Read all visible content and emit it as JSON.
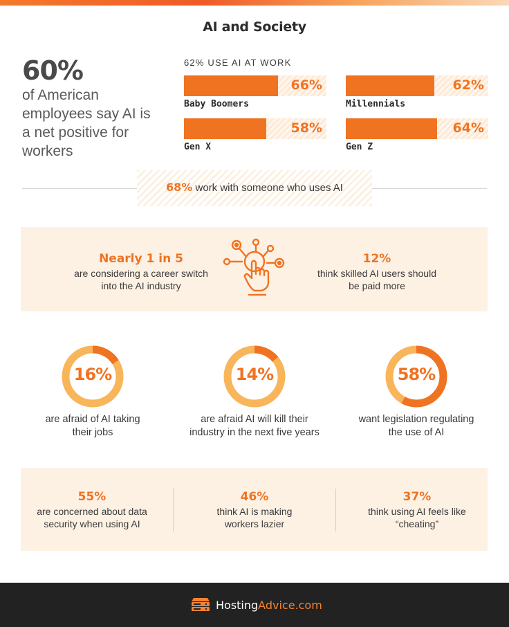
{
  "title": "AI and Society",
  "headline": {
    "value": "60%",
    "description": "of American employees say AI is a net positive for workers"
  },
  "generations": {
    "heading": "62% USE AI AT WORK",
    "items": [
      {
        "label": "Baby Boomers",
        "value": "66%",
        "fraction": 0.66
      },
      {
        "label": "Millennials",
        "value": "62%",
        "fraction": 0.62
      },
      {
        "label": "Gen X",
        "value": "58%",
        "fraction": 0.58
      },
      {
        "label": "Gen Z",
        "value": "64%",
        "fraction": 0.64
      }
    ]
  },
  "coworkers": {
    "value": "68%",
    "text": "work with someone who uses AI"
  },
  "panel1": {
    "left": {
      "highlight": "Nearly 1 in 5",
      "text": "are considering a career switch into the AI industry"
    },
    "icon": "ai-touch-network-icon",
    "right": {
      "highlight": "12%",
      "text": "think skilled AI users should be paid more"
    }
  },
  "rings": [
    {
      "value": "16%",
      "fraction": 0.16,
      "text": "are afraid of AI taking their jobs"
    },
    {
      "value": "14%",
      "fraction": 0.14,
      "text": "are afraid AI will kill their industry in the next five years"
    },
    {
      "value": "58%",
      "fraction": 0.58,
      "text": "want legislation regulating the use of AI"
    }
  ],
  "panel2": [
    {
      "highlight": "55%",
      "text": "are concerned about data security when using AI"
    },
    {
      "highlight": "46%",
      "text": "think AI is making workers lazier"
    },
    {
      "highlight": "37%",
      "text": "think using AI feels like “cheating”"
    }
  ],
  "footer": {
    "brand_main": "Hosting",
    "brand_accent": "Advice.com",
    "icon": "server-logo-icon"
  },
  "colors": {
    "accent": "#f07322",
    "ring_track": "#f9b55a",
    "panel_bg": "#fdf1e4",
    "footer_bg": "#222222"
  }
}
